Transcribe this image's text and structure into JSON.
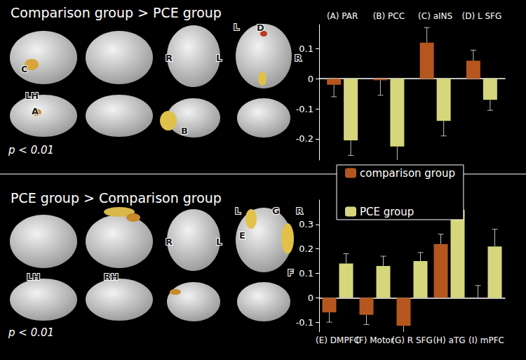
{
  "chart_data": [
    {
      "type": "bar",
      "title": "Comparison group > PCE group",
      "annotations": [
        "LH",
        "R",
        "L",
        "L",
        "R",
        "A",
        "B",
        "C",
        "D",
        "p < 0.01"
      ],
      "categories": [
        "(A) PAR",
        "(B) PCC",
        "(C) aINS",
        "(D) L SFG"
      ],
      "series": [
        {
          "name": "comparison group",
          "color": "#b5561e",
          "values": [
            -0.02,
            -0.005,
            0.12,
            0.06
          ],
          "errors": [
            0.04,
            0.05,
            0.05,
            0.035
          ]
        },
        {
          "name": "PCE group",
          "color": "#d6d67c",
          "values": [
            -0.205,
            -0.225,
            -0.14,
            -0.07
          ],
          "errors": [
            0.05,
            0.05,
            0.05,
            0.035
          ]
        }
      ],
      "ylim": [
        -0.27,
        0.18
      ],
      "yticks": [
        -0.2,
        -0.1,
        0,
        0.1
      ],
      "legend": "center",
      "grid": false
    },
    {
      "type": "bar",
      "title": "PCE group > Comparison group",
      "annotations": [
        "LH",
        "RH",
        "R",
        "L",
        "L",
        "R",
        "E",
        "F",
        "G",
        "p < 0.01"
      ],
      "categories": [
        "(E) DMPFC",
        "(F) Motor",
        "(G) R SFG",
        "(H) aTG",
        "(I) mPFC"
      ],
      "series": [
        {
          "name": "comparison group",
          "color": "#b5561e",
          "values": [
            -0.06,
            -0.07,
            -0.115,
            0.22,
            0
          ],
          "errors": [
            0.04,
            0.04,
            0.035,
            0.04,
            0.05
          ]
        },
        {
          "name": "PCE group",
          "color": "#d6d67c",
          "values": [
            0.14,
            0.13,
            0.15,
            0.36,
            0.21
          ],
          "errors": [
            0.04,
            0.04,
            0.035,
            0.04,
            0.07
          ]
        }
      ],
      "ylim": [
        -0.14,
        0.4
      ],
      "yticks": [
        -0.1,
        0,
        0.1,
        0.2,
        0.3
      ],
      "grid": false
    }
  ]
}
